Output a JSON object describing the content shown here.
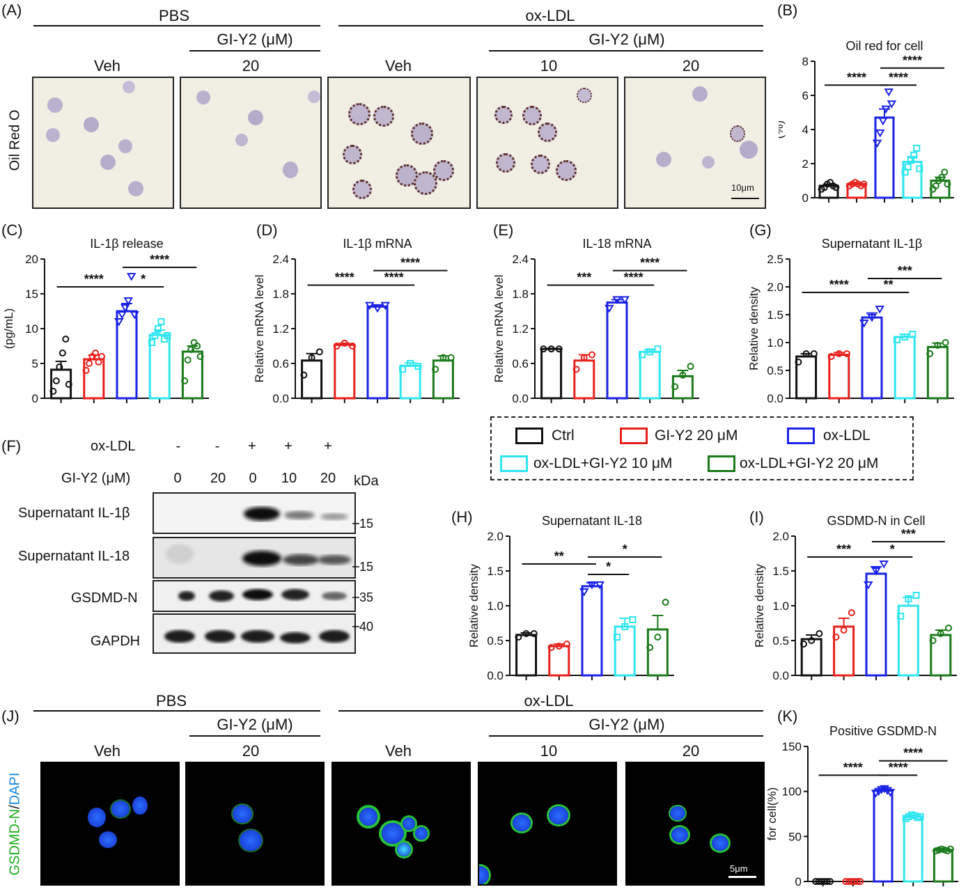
{
  "panels": {
    "A": "(A)",
    "B": "(B)",
    "C": "(C)",
    "D": "(D)",
    "E": "(E)",
    "F": "(F)",
    "G": "(G)",
    "H": "(H)",
    "I": "(I)",
    "J": "(J)",
    "K": "(K)"
  },
  "micro_top": {
    "pbs": "PBS",
    "oxldl": "ox-LDL",
    "gi1": "GI-Y2 (μM)",
    "gi2": "GI-Y2 (μM)",
    "cols": [
      "Veh",
      "20",
      "Veh",
      "10",
      "20"
    ],
    "side": "Oil Red O",
    "scale": "10μm"
  },
  "micro_bottom": {
    "pbs": "PBS",
    "oxldl": "ox-LDL",
    "gi1": "GI-Y2 (μM)",
    "gi2": "GI-Y2 (μM)",
    "cols": [
      "Veh",
      "20",
      "Veh",
      "10",
      "20"
    ],
    "side_green": "GSDMD-N",
    "side_slash": "/",
    "side_blue": "DAPI",
    "scale": "5μm"
  },
  "western": {
    "oxldl_label": "ox-LDL",
    "oxldl_vals": [
      "-",
      "-",
      "+",
      "+",
      "+"
    ],
    "gi_label": "GI-Y2 (μM)",
    "gi_vals": [
      "0",
      "20",
      "0",
      "10",
      "20"
    ],
    "kda": "kDa",
    "rows": [
      {
        "name": "Supernatant IL-1β",
        "mw": "15"
      },
      {
        "name": "Supernatant IL-18",
        "mw": "15"
      },
      {
        "name": "GSDMD-N",
        "mw": "35"
      },
      {
        "name": "GAPDH",
        "mw": "40"
      }
    ]
  },
  "legend": {
    "items": [
      "Ctrl",
      "GI-Y2 20 μM",
      "ox-LDL",
      "ox-LDL+GI-Y2 10 μM",
      "ox-LDL+GI-Y2 20 μM"
    ],
    "colors": [
      "#111111",
      "#e8201c",
      "#1a22e6",
      "#2ee6f0",
      "#1a7a1a"
    ]
  },
  "chart_data": [
    {
      "id": "B",
      "type": "bar",
      "title": "Oil red for cell",
      "ylabel": "(%)",
      "ylim": [
        0,
        8
      ],
      "yticks": [
        "0",
        "2",
        "4",
        "6",
        "8"
      ],
      "values": [
        0.7,
        0.8,
        4.7,
        2.1,
        1.0
      ],
      "errors": [
        0.1,
        0.05,
        0.5,
        0.3,
        0.2
      ],
      "points": [
        [
          0.5,
          0.6,
          0.8,
          0.9,
          0.7,
          0.6
        ],
        [
          0.7,
          0.8,
          0.9,
          0.8,
          0.7,
          0.8
        ],
        [
          3.2,
          3.8,
          4.5,
          5.2,
          6.2,
          5.5
        ],
        [
          1.5,
          1.8,
          2.2,
          2.5,
          2.9,
          1.7
        ],
        [
          0.5,
          0.7,
          1.0,
          1.2,
          1.5,
          0.8
        ]
      ],
      "markers": [
        "o",
        "o",
        "v",
        "s",
        "o"
      ],
      "sig": [
        {
          "from": 0,
          "to": 2,
          "label": "****",
          "y": 6.6
        },
        {
          "from": 2,
          "to": 3,
          "label": "****",
          "y": 6.6
        },
        {
          "from": 2,
          "to": 4,
          "label": "****",
          "y": 7.6
        }
      ]
    },
    {
      "id": "C",
      "type": "bar",
      "title": "IL-1β release",
      "ylabel": "(pg/mL)",
      "ylim": [
        0,
        20
      ],
      "yticks": [
        "0",
        "5",
        "10",
        "15",
        "20"
      ],
      "values": [
        4.1,
        5.6,
        12.5,
        9.1,
        6.7
      ],
      "errors": [
        1.2,
        0.6,
        1.1,
        0.7,
        0.8
      ],
      "points": [
        [
          1.0,
          2.5,
          4.5,
          6.5,
          8.5,
          2.0
        ],
        [
          4.0,
          5.0,
          6.0,
          6.5,
          5.2,
          6.0
        ],
        [
          11,
          12,
          13,
          14,
          17.5,
          12
        ],
        [
          8,
          9,
          10,
          11,
          8.5,
          9
        ],
        [
          2.5,
          5.5,
          7,
          8,
          7.5,
          6
        ]
      ],
      "markers": [
        "o",
        "o",
        "v",
        "s",
        "o"
      ],
      "sig": [
        {
          "from": 0,
          "to": 2,
          "label": "****",
          "y": 16
        },
        {
          "from": 2,
          "to": 3,
          "label": "*",
          "y": 16
        },
        {
          "from": 2,
          "to": 4,
          "label": "****",
          "y": 18.8
        }
      ]
    },
    {
      "id": "D",
      "type": "bar",
      "title": "IL-1β mRNA",
      "ylabel": "Relative mRNA level",
      "ylim": [
        0,
        2.4
      ],
      "yticks": [
        "0.0",
        "0.6",
        "1.2",
        "1.8",
        "2.4"
      ],
      "values": [
        0.65,
        0.92,
        1.58,
        0.56,
        0.65
      ],
      "errors": [
        0.12,
        0.03,
        0.03,
        0.05,
        0.08
      ],
      "points": [
        [
          0.4,
          0.7,
          0.8
        ],
        [
          0.9,
          0.95,
          0.9
        ],
        [
          1.6,
          1.55,
          1.6
        ],
        [
          0.5,
          0.6,
          0.55
        ],
        [
          0.5,
          0.7,
          0.7
        ]
      ],
      "markers": [
        "o",
        "o",
        "v",
        "s",
        "o"
      ],
      "sig": [
        {
          "from": 0,
          "to": 2,
          "label": "****",
          "y": 1.95
        },
        {
          "from": 2,
          "to": 3,
          "label": "****",
          "y": 1.95
        },
        {
          "from": 2,
          "to": 4,
          "label": "****",
          "y": 2.2
        }
      ]
    },
    {
      "id": "E",
      "type": "bar",
      "title": "IL-18 mRNA",
      "ylabel": "Relative mRNA level",
      "ylim": [
        0,
        2.4
      ],
      "yticks": [
        "0.0",
        "0.6",
        "1.2",
        "1.8",
        "2.4"
      ],
      "values": [
        0.85,
        0.65,
        1.65,
        0.8,
        0.38
      ],
      "errors": [
        0.01,
        0.1,
        0.05,
        0.04,
        0.1
      ],
      "points": [
        [
          0.85,
          0.85,
          0.85
        ],
        [
          0.5,
          0.7,
          0.75
        ],
        [
          1.55,
          1.7,
          1.7
        ],
        [
          0.75,
          0.8,
          0.85
        ],
        [
          0.2,
          0.4,
          0.55
        ]
      ],
      "markers": [
        "o",
        "o",
        "v",
        "s",
        "o"
      ],
      "sig": [
        {
          "from": 0,
          "to": 2,
          "label": "***",
          "y": 1.95
        },
        {
          "from": 2,
          "to": 3,
          "label": "****",
          "y": 1.95
        },
        {
          "from": 2,
          "to": 4,
          "label": "****",
          "y": 2.2
        }
      ]
    },
    {
      "id": "G",
      "type": "bar",
      "title": "Supernatant IL-1β",
      "ylabel": "Relative density",
      "ylim": [
        0,
        2.5
      ],
      "yticks": [
        "0.0",
        "0.5",
        "1.0",
        "1.5",
        "2.0",
        "2.5"
      ],
      "values": [
        0.75,
        0.78,
        1.45,
        1.1,
        0.92
      ],
      "errors": [
        0.05,
        0.04,
        0.08,
        0.05,
        0.07
      ],
      "points": [
        [
          0.65,
          0.8,
          0.8
        ],
        [
          0.75,
          0.8,
          0.8
        ],
        [
          1.35,
          1.45,
          1.6
        ],
        [
          1.05,
          1.1,
          1.15
        ],
        [
          0.8,
          0.95,
          1.0
        ]
      ],
      "markers": [
        "o",
        "o",
        "v",
        "s",
        "o"
      ],
      "sig": [
        {
          "from": 0,
          "to": 2,
          "label": "****",
          "y": 1.9
        },
        {
          "from": 2,
          "to": 3,
          "label": "**",
          "y": 1.9
        },
        {
          "from": 2,
          "to": 4,
          "label": "***",
          "y": 2.15
        }
      ]
    },
    {
      "id": "H",
      "type": "bar",
      "title": "Supernatant IL-18",
      "ylabel": "Relative density",
      "ylim": [
        0,
        2.0
      ],
      "yticks": [
        "0.0",
        "0.5",
        "1.0",
        "1.5",
        "2.0"
      ],
      "values": [
        0.58,
        0.42,
        1.28,
        0.7,
        0.66
      ],
      "errors": [
        0.03,
        0.03,
        0.05,
        0.12,
        0.2
      ],
      "points": [
        [
          0.55,
          0.6,
          0.6
        ],
        [
          0.4,
          0.42,
          0.45
        ],
        [
          1.2,
          1.3,
          1.3
        ],
        [
          0.55,
          0.7,
          0.8
        ],
        [
          0.4,
          0.55,
          1.05
        ]
      ],
      "markers": [
        "o",
        "o",
        "v",
        "s",
        "o"
      ],
      "sig": [
        {
          "from": 0,
          "to": 2,
          "label": "**",
          "y": 1.6
        },
        {
          "from": 2,
          "to": 3,
          "label": "*",
          "y": 1.45
        },
        {
          "from": 2,
          "to": 4,
          "label": "*",
          "y": 1.7
        }
      ]
    },
    {
      "id": "I",
      "type": "bar",
      "title": "GSDMD-N in Cell",
      "ylabel": "Relative density",
      "ylim": [
        0,
        2.0
      ],
      "yticks": [
        "0.0",
        "0.5",
        "1.0",
        "1.5",
        "2.0"
      ],
      "values": [
        0.52,
        0.7,
        1.46,
        1.0,
        0.58
      ],
      "errors": [
        0.06,
        0.12,
        0.1,
        0.12,
        0.07
      ],
      "points": [
        [
          0.45,
          0.5,
          0.6
        ],
        [
          0.55,
          0.65,
          0.9
        ],
        [
          1.3,
          1.5,
          1.6
        ],
        [
          0.85,
          1.1,
          1.15
        ],
        [
          0.5,
          0.6,
          0.68
        ]
      ],
      "markers": [
        "o",
        "o",
        "v",
        "s",
        "o"
      ],
      "sig": [
        {
          "from": 0,
          "to": 2,
          "label": "***",
          "y": 1.7
        },
        {
          "from": 2,
          "to": 3,
          "label": "*",
          "y": 1.7
        },
        {
          "from": 2,
          "to": 4,
          "label": "***",
          "y": 1.92
        }
      ]
    },
    {
      "id": "K",
      "type": "bar",
      "title": "Positive GSDMD-N",
      "ylabel": "for cell(%)",
      "ylim": [
        0,
        150
      ],
      "yticks": [
        "0",
        "50",
        "100",
        "150"
      ],
      "values": [
        0,
        0,
        101,
        72,
        35
      ],
      "errors": [
        0,
        0,
        2,
        2,
        1
      ],
      "points": [
        [
          0,
          0,
          0,
          0,
          0,
          0
        ],
        [
          0,
          0,
          0,
          0,
          0,
          0
        ],
        [
          98,
          100,
          102,
          103,
          101,
          99
        ],
        [
          70,
          72,
          74,
          73,
          71,
          72
        ],
        [
          34,
          35,
          36,
          35,
          34,
          36
        ]
      ],
      "markers": [
        "o",
        "o",
        "v",
        "s",
        "o"
      ],
      "sig": [
        {
          "from": 0,
          "to": 2,
          "label": "****",
          "y": 118
        },
        {
          "from": 2,
          "to": 3,
          "label": "****",
          "y": 118
        },
        {
          "from": 2,
          "to": 4,
          "label": "****",
          "y": 134
        }
      ]
    }
  ]
}
